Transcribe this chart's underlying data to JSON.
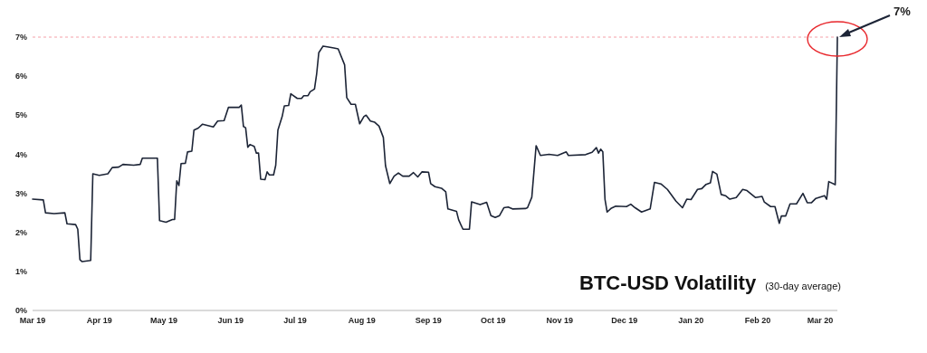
{
  "chart_data": {
    "type": "line",
    "title": "BTC-USD Volatility",
    "subtitle": "(30-day average)",
    "x": [
      "2019-03-01",
      "2019-03-06",
      "2019-03-07",
      "2019-03-11",
      "2019-03-16",
      "2019-03-17",
      "2019-03-21",
      "2019-03-22",
      "2019-03-23",
      "2019-03-24",
      "2019-03-28",
      "2019-03-29",
      "2019-04-01",
      "2019-04-05",
      "2019-04-07",
      "2019-04-10",
      "2019-04-12",
      "2019-04-17",
      "2019-04-20",
      "2019-04-21",
      "2019-04-28",
      "2019-04-29",
      "2019-05-02",
      "2019-05-05",
      "2019-05-06",
      "2019-05-07",
      "2019-05-08",
      "2019-05-09",
      "2019-05-11",
      "2019-05-12",
      "2019-05-14",
      "2019-05-15",
      "2019-05-17",
      "2019-05-19",
      "2019-05-24",
      "2019-05-26",
      "2019-05-29",
      "2019-05-31",
      "2019-06-05",
      "2019-06-06",
      "2019-06-07",
      "2019-06-08",
      "2019-06-09",
      "2019-06-10",
      "2019-06-12",
      "2019-06-13",
      "2019-06-14",
      "2019-06-15",
      "2019-06-17",
      "2019-06-18",
      "2019-06-19",
      "2019-06-21",
      "2019-06-22",
      "2019-06-23",
      "2019-06-25",
      "2019-06-26",
      "2019-06-28",
      "2019-06-29",
      "2019-07-02",
      "2019-07-04",
      "2019-07-05",
      "2019-07-07",
      "2019-07-08",
      "2019-07-10",
      "2019-07-11",
      "2019-07-12",
      "2019-07-14",
      "2019-07-16",
      "2019-07-19",
      "2019-07-21",
      "2019-07-24",
      "2019-07-25",
      "2019-07-27",
      "2019-07-29",
      "2019-07-31",
      "2019-08-02",
      "2019-08-03",
      "2019-08-05",
      "2019-08-07",
      "2019-08-09",
      "2019-08-11",
      "2019-08-12",
      "2019-08-14",
      "2019-08-16",
      "2019-08-18",
      "2019-08-20",
      "2019-08-23",
      "2019-08-25",
      "2019-08-27",
      "2019-08-29",
      "2019-09-01",
      "2019-09-02",
      "2019-09-04",
      "2019-09-07",
      "2019-09-09",
      "2019-09-10",
      "2019-09-14",
      "2019-09-15",
      "2019-09-17",
      "2019-09-20",
      "2019-09-21",
      "2019-09-25",
      "2019-09-28",
      "2019-09-30",
      "2019-10-02",
      "2019-10-04",
      "2019-10-06",
      "2019-10-08",
      "2019-10-10",
      "2019-10-16",
      "2019-10-17",
      "2019-10-19",
      "2019-10-21",
      "2019-10-23",
      "2019-10-27",
      "2019-10-31",
      "2019-11-04",
      "2019-11-05",
      "2019-11-13",
      "2019-11-16",
      "2019-11-18",
      "2019-11-19",
      "2019-11-20",
      "2019-11-21",
      "2019-11-22",
      "2019-11-23",
      "2019-11-25",
      "2019-11-27",
      "2019-12-02",
      "2019-12-04",
      "2019-12-06",
      "2019-12-09",
      "2019-12-13",
      "2019-12-15",
      "2019-12-18",
      "2019-12-21",
      "2019-12-25",
      "2019-12-28",
      "2019-12-30",
      "2020-01-01",
      "2020-01-04",
      "2020-01-06",
      "2020-01-08",
      "2020-01-10",
      "2020-01-11",
      "2020-01-13",
      "2020-01-15",
      "2020-01-17",
      "2020-01-19",
      "2020-01-22",
      "2020-01-25",
      "2020-01-27",
      "2020-01-31",
      "2020-02-03",
      "2020-02-04",
      "2020-02-07",
      "2020-02-09",
      "2020-02-11",
      "2020-02-12",
      "2020-02-14",
      "2020-02-16",
      "2020-02-19",
      "2020-02-22",
      "2020-02-24",
      "2020-02-26",
      "2020-02-28",
      "2020-03-03",
      "2020-03-04",
      "2020-03-05",
      "2020-03-08",
      "2020-03-09"
    ],
    "series": [
      {
        "color": "#1c2436",
        "values": [
          2.85,
          2.83,
          2.5,
          2.48,
          2.5,
          2.22,
          2.2,
          2.08,
          1.3,
          1.25,
          1.28,
          3.5,
          3.46,
          3.5,
          3.66,
          3.67,
          3.74,
          3.72,
          3.74,
          3.9,
          3.9,
          2.3,
          2.26,
          2.33,
          2.33,
          3.32,
          3.2,
          3.76,
          3.77,
          4.06,
          4.08,
          4.62,
          4.67,
          4.77,
          4.7,
          4.85,
          4.86,
          5.2,
          5.2,
          5.26,
          4.71,
          4.68,
          4.18,
          4.25,
          4.2,
          4.03,
          4.03,
          3.36,
          3.35,
          3.55,
          3.47,
          3.47,
          3.72,
          4.62,
          4.97,
          5.24,
          5.25,
          5.55,
          5.43,
          5.43,
          5.5,
          5.5,
          5.6,
          5.67,
          6.05,
          6.6,
          6.77,
          6.75,
          6.72,
          6.7,
          6.29,
          5.45,
          5.28,
          5.28,
          4.78,
          4.97,
          5.0,
          4.85,
          4.82,
          4.72,
          4.43,
          3.71,
          3.25,
          3.44,
          3.52,
          3.44,
          3.44,
          3.53,
          3.42,
          3.55,
          3.54,
          3.25,
          3.17,
          3.13,
          3.04,
          2.6,
          2.54,
          2.32,
          2.08,
          2.08,
          2.78,
          2.71,
          2.77,
          2.43,
          2.38,
          2.43,
          2.63,
          2.65,
          2.6,
          2.61,
          2.63,
          2.9,
          4.22,
          3.97,
          4.0,
          3.97,
          4.06,
          3.97,
          3.99,
          4.05,
          4.17,
          4.03,
          4.13,
          4.06,
          2.85,
          2.52,
          2.62,
          2.67,
          2.66,
          2.72,
          2.63,
          2.52,
          2.6,
          3.28,
          3.24,
          3.1,
          2.8,
          2.63,
          2.85,
          2.84,
          3.1,
          3.12,
          3.23,
          3.27,
          3.56,
          3.49,
          2.97,
          2.94,
          2.85,
          2.89,
          3.1,
          3.07,
          2.89,
          2.92,
          2.78,
          2.66,
          2.66,
          2.23,
          2.42,
          2.42,
          2.73,
          2.73,
          3.0,
          2.76,
          2.76,
          2.87,
          2.94,
          2.85,
          3.3,
          3.22,
          7.0
        ]
      }
    ],
    "xlim": [
      "2019-03-01",
      "2020-03-09"
    ],
    "xticks": [
      {
        "value": "2019-03-01",
        "label": "Mar 19"
      },
      {
        "value": "2019-04-01",
        "label": "Apr 19"
      },
      {
        "value": "2019-05-01",
        "label": "May 19"
      },
      {
        "value": "2019-06-01",
        "label": "Jun 19"
      },
      {
        "value": "2019-07-01",
        "label": "Jul 19"
      },
      {
        "value": "2019-08-01",
        "label": "Aug 19"
      },
      {
        "value": "2019-09-01",
        "label": "Sep 19"
      },
      {
        "value": "2019-10-01",
        "label": "Oct 19"
      },
      {
        "value": "2019-11-01",
        "label": "Nov 19"
      },
      {
        "value": "2019-12-01",
        "label": "Dec 19"
      },
      {
        "value": "2020-01-01",
        "label": "Jan 20"
      },
      {
        "value": "2020-02-01",
        "label": "Feb 20"
      },
      {
        "value": "2020-03-01",
        "label": "Mar 20"
      }
    ],
    "ylim": [
      0,
      7
    ],
    "yticks": [
      {
        "value": 0,
        "label": "0%"
      },
      {
        "value": 1,
        "label": "1%"
      },
      {
        "value": 2,
        "label": "2%"
      },
      {
        "value": 3,
        "label": "3%"
      },
      {
        "value": 4,
        "label": "4%"
      },
      {
        "value": 5,
        "label": "5%"
      },
      {
        "value": 6,
        "label": "6%"
      },
      {
        "value": 7,
        "label": "7%"
      }
    ],
    "ref_lines": [
      {
        "axis": "y",
        "value": 7,
        "color": "#f4a0a8",
        "line_style": "dashed"
      }
    ],
    "annotations": [
      {
        "text": "7%",
        "x": "2020-03-09",
        "y": 7
      }
    ],
    "grid": false,
    "marker": "none",
    "line_style": "solid"
  }
}
